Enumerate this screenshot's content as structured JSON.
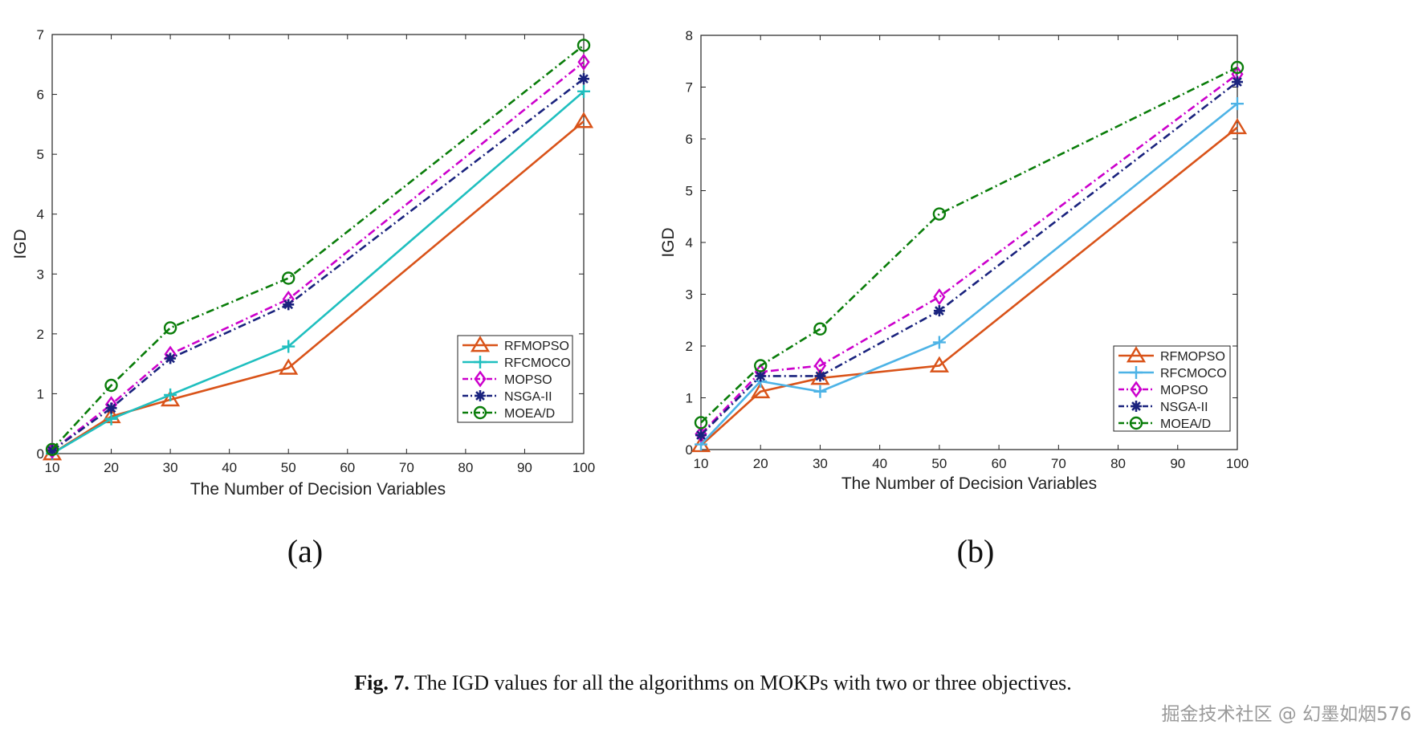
{
  "chart_data": [
    {
      "id": "a",
      "type": "line",
      "panel_label": "(a)",
      "xlabel": "The Number of Decision Variables",
      "ylabel": "IGD",
      "xlim": [
        10,
        100
      ],
      "ylim": [
        0,
        7
      ],
      "xticks": [
        10,
        20,
        30,
        40,
        50,
        60,
        70,
        80,
        90,
        100
      ],
      "yticks": [
        0,
        1,
        2,
        3,
        4,
        5,
        6,
        7
      ],
      "grid": false,
      "legend_position": "lower-right",
      "x": [
        10,
        20,
        30,
        50,
        100
      ],
      "series": [
        {
          "name": "RFMOPSO",
          "values": [
            0.0,
            0.62,
            0.9,
            1.43,
            5.55
          ],
          "color": "#d95319",
          "marker": "triangle",
          "dash": "solid"
        },
        {
          "name": "RFCMOCO",
          "values": [
            0.0,
            0.58,
            0.98,
            1.79,
            6.05
          ],
          "color": "#1fbfbf",
          "marker": "plus",
          "dash": "solid"
        },
        {
          "name": "MOPSO",
          "values": [
            0.05,
            0.82,
            1.66,
            2.58,
            6.54
          ],
          "color": "#cc00cc",
          "marker": "diamond",
          "dash": "dashdot"
        },
        {
          "name": "NSGA-II",
          "values": [
            0.05,
            0.76,
            1.59,
            2.49,
            6.26
          ],
          "color": "#1a237e",
          "marker": "asterisk",
          "dash": "dashdot"
        },
        {
          "name": "MOEA/D",
          "values": [
            0.07,
            1.14,
            2.1,
            2.93,
            6.82
          ],
          "color": "#0a7d0a",
          "marker": "circle",
          "dash": "dashdot"
        }
      ]
    },
    {
      "id": "b",
      "type": "line",
      "panel_label": "(b)",
      "xlabel": "The Number of Decision Variables",
      "ylabel": "IGD",
      "xlim": [
        10,
        100
      ],
      "ylim": [
        0,
        8
      ],
      "xticks": [
        10,
        20,
        30,
        40,
        50,
        60,
        70,
        80,
        90,
        100
      ],
      "yticks": [
        0,
        1,
        2,
        3,
        4,
        5,
        6,
        7,
        8
      ],
      "grid": false,
      "legend_position": "lower-right",
      "x": [
        10,
        20,
        30,
        50,
        100
      ],
      "series": [
        {
          "name": "RFMOPSO",
          "values": [
            0.08,
            1.12,
            1.38,
            1.62,
            6.22
          ],
          "color": "#d95319",
          "marker": "triangle",
          "dash": "solid"
        },
        {
          "name": "RFCMOCO",
          "values": [
            0.1,
            1.32,
            1.12,
            2.07,
            6.68
          ],
          "color": "#4db3e6",
          "marker": "plus",
          "dash": "solid"
        },
        {
          "name": "MOPSO",
          "values": [
            0.3,
            1.5,
            1.62,
            2.95,
            7.25
          ],
          "color": "#cc00cc",
          "marker": "diamond",
          "dash": "dashdot"
        },
        {
          "name": "NSGA-II",
          "values": [
            0.28,
            1.42,
            1.42,
            2.68,
            7.1
          ],
          "color": "#1a237e",
          "marker": "asterisk",
          "dash": "dashdot"
        },
        {
          "name": "MOEA/D",
          "values": [
            0.52,
            1.62,
            2.33,
            4.55,
            7.38
          ],
          "color": "#0a7d0a",
          "marker": "circle",
          "dash": "dashdot"
        }
      ]
    }
  ],
  "caption": {
    "label": "Fig. 7.",
    "text": " The IGD values for all the algorithms on MOKPs with two or three objectives."
  },
  "watermark": "掘金技术社区 @ 幻墨如烟576"
}
